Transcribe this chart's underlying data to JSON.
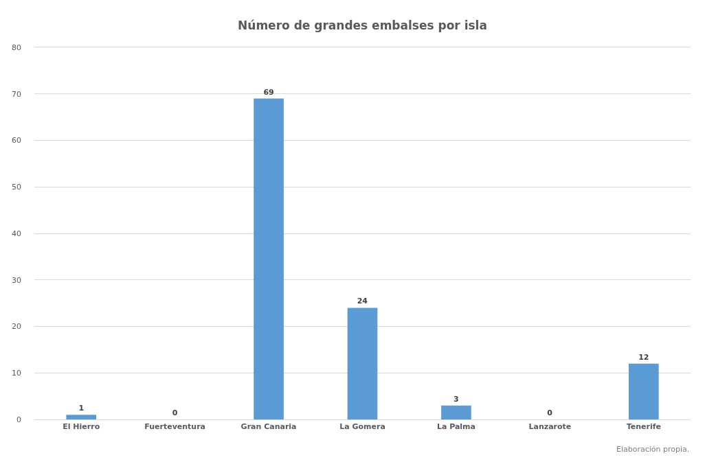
{
  "chart_data": {
    "type": "bar",
    "title": "Número de grandes embalses por isla",
    "categories": [
      "El Hierro",
      "Fuerteventura",
      "Gran Canaria",
      "La Gomera",
      "La Palma",
      "Lanzarote",
      "Tenerife"
    ],
    "values": [
      1,
      0,
      69,
      24,
      3,
      0,
      12
    ],
    "color": "#5b9bd5",
    "ylim": [
      0,
      80
    ],
    "yticks": [
      0,
      10,
      20,
      30,
      40,
      50,
      60,
      70,
      80
    ],
    "grid": "y",
    "data_labels": true,
    "annotations": [
      "Elaboración propia."
    ]
  }
}
